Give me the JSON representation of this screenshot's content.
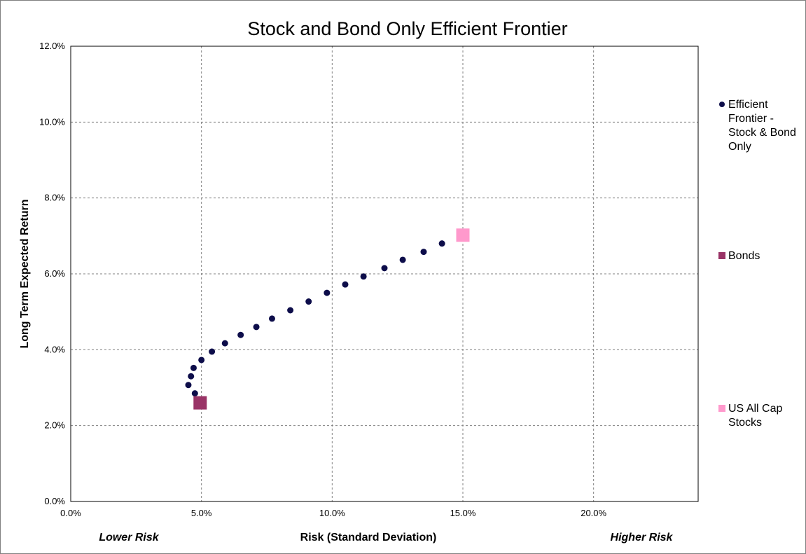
{
  "chart_data": {
    "type": "scatter",
    "title": "Stock and Bond Only Efficient Frontier",
    "xlabel": "Risk (Standard Deviation)",
    "ylabel": "Long Term Expected Return",
    "xlim": [
      0,
      24
    ],
    "ylim": [
      0,
      12
    ],
    "x_ticks": [
      0,
      5,
      10,
      15,
      20
    ],
    "x_tick_labels": [
      "0.0%",
      "5.0%",
      "10.0%",
      "15.0%",
      "20.0%"
    ],
    "y_ticks": [
      0,
      2,
      4,
      6,
      8,
      10,
      12
    ],
    "y_tick_labels": [
      "0.0%",
      "2.0%",
      "4.0%",
      "6.0%",
      "8.0%",
      "10.0%",
      "12.0%"
    ],
    "grid": true,
    "legend_position": "right",
    "annotations": {
      "lower_risk": "Lower Risk",
      "higher_risk": "Higher Risk"
    },
    "series": [
      {
        "name": "Efficient Frontier - Stock & Bond Only",
        "legend_lines": [
          "Efficient",
          "Frontier -",
          "Stock & Bond",
          "Only"
        ],
        "marker": "circle",
        "color": "#0d0d4a",
        "x": [
          4.75,
          4.5,
          4.6,
          4.7,
          5.0,
          5.4,
          5.9,
          6.5,
          7.1,
          7.7,
          8.4,
          9.1,
          9.8,
          10.5,
          11.2,
          12.0,
          12.7,
          13.5,
          14.2
        ],
        "y": [
          2.85,
          3.07,
          3.3,
          3.52,
          3.73,
          3.95,
          4.17,
          4.39,
          4.6,
          4.82,
          5.04,
          5.27,
          5.5,
          5.72,
          5.93,
          6.15,
          6.37,
          6.58,
          6.8
        ]
      },
      {
        "name": "Bonds",
        "legend_lines": [
          "Bonds"
        ],
        "marker": "square",
        "color": "#993366",
        "x": [
          4.95
        ],
        "y": [
          2.6
        ]
      },
      {
        "name": "US All Cap Stocks",
        "legend_lines": [
          "US All Cap",
          "Stocks"
        ],
        "marker": "square",
        "color": "#ff99cc",
        "x": [
          15.0
        ],
        "y": [
          7.02
        ]
      }
    ]
  }
}
